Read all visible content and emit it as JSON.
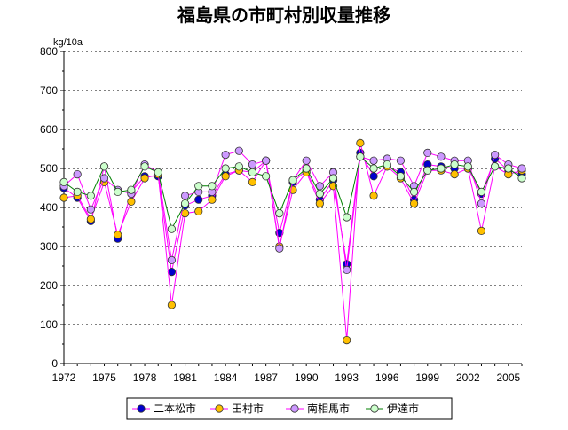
{
  "chart_data": {
    "type": "line",
    "title": "福島県の市町村別収量推移",
    "ylabel": "kg/10a",
    "xlabel": "",
    "ylim": [
      0,
      800
    ],
    "yticks": [
      0,
      100,
      200,
      300,
      400,
      500,
      600,
      700,
      800
    ],
    "xtick_labels": [
      "1972",
      "1975",
      "1978",
      "1981",
      "1984",
      "1987",
      "1990",
      "1993",
      "1996",
      "1999",
      "2002",
      "2005"
    ],
    "x": [
      1972,
      1973,
      1974,
      1975,
      1976,
      1977,
      1978,
      1979,
      1980,
      1981,
      1982,
      1983,
      1984,
      1985,
      1986,
      1987,
      1988,
      1989,
      1990,
      1991,
      1992,
      1993,
      1994,
      1995,
      1996,
      1997,
      1998,
      1999,
      2000,
      2001,
      2002,
      2003,
      2004,
      2005,
      2006
    ],
    "grid": "horizontal dotted",
    "legend_position": "bottom",
    "series": [
      {
        "name": "二本松市",
        "line_color": "#FF00FF",
        "marker_color": "#0000CC",
        "values": [
          450,
          425,
          365,
          505,
          320,
          440,
          480,
          480,
          235,
          405,
          420,
          430,
          485,
          495,
          490,
          520,
          335,
          465,
          495,
          420,
          470,
          255,
          540,
          480,
          505,
          490,
          420,
          510,
          505,
          500,
          500,
          435,
          525,
          495,
          485
        ]
      },
      {
        "name": "田村市",
        "line_color": "#FF00FF",
        "marker_color": "#FFC000",
        "values": [
          425,
          430,
          370,
          465,
          330,
          415,
          475,
          485,
          150,
          385,
          390,
          420,
          480,
          495,
          465,
          520,
          300,
          445,
          490,
          410,
          455,
          60,
          565,
          430,
          505,
          475,
          410,
          495,
          495,
          485,
          500,
          340,
          505,
          485,
          495
        ]
      },
      {
        "name": "南相馬市",
        "line_color": "#FF00FF",
        "marker_color": "#CC99FF",
        "values": [
          455,
          485,
          395,
          475,
          445,
          435,
          510,
          490,
          265,
          430,
          440,
          440,
          535,
          545,
          510,
          520,
          295,
          470,
          520,
          455,
          490,
          240,
          530,
          520,
          525,
          520,
          455,
          540,
          530,
          520,
          520,
          410,
          535,
          510,
          500
        ]
      },
      {
        "name": "伊達市",
        "line_color": "#008000",
        "marker_color": "#CCFFCC",
        "values": [
          465,
          440,
          430,
          505,
          440,
          445,
          505,
          490,
          345,
          410,
          455,
          455,
          500,
          505,
          490,
          480,
          385,
          470,
          500,
          435,
          475,
          375,
          530,
          500,
          510,
          480,
          440,
          495,
          500,
          510,
          505,
          440,
          505,
          500,
          475
        ]
      }
    ]
  }
}
